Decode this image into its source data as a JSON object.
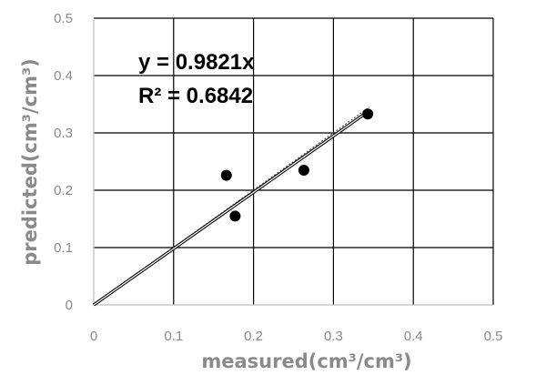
{
  "chart_data": {
    "type": "scatter",
    "xlabel": "measured(cm³/cm³)",
    "ylabel": "predicted(cm³/cm³)",
    "xlim": [
      0,
      0.5
    ],
    "ylim": [
      0,
      0.5
    ],
    "x_ticks": [
      "0",
      "0.1",
      "0.2",
      "0.3",
      "0.4",
      "0.5"
    ],
    "y_ticks": [
      "0",
      "0.1",
      "0.2",
      "0.3",
      "0.4",
      "0.5"
    ],
    "grid": true,
    "series": [
      {
        "points": [
          {
            "x": 0.166,
            "y": 0.226
          },
          {
            "x": 0.177,
            "y": 0.155
          },
          {
            "x": 0.263,
            "y": 0.235
          },
          {
            "x": 0.343,
            "y": 0.333
          }
        ]
      }
    ],
    "trendline": {
      "type": "linear",
      "slope": 0.9821,
      "intercept": 0,
      "x_range": [
        0,
        0.345
      ]
    },
    "reference_line": {
      "type": "1:1",
      "style": "dotted",
      "x_range": [
        0,
        0.345
      ]
    },
    "annotations": [
      "y = 0.9821x",
      "R² = 0.6842"
    ],
    "colors": {
      "grid": "#000000",
      "axis": "#bfbfbf",
      "text": "#8a8a8a",
      "points": "#000000"
    }
  }
}
